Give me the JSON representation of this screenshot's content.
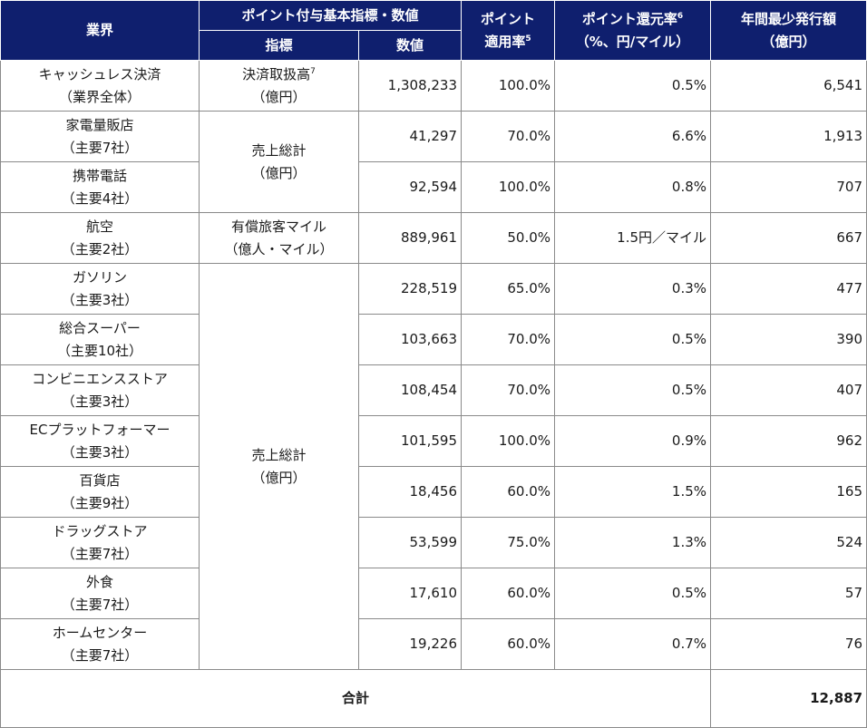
{
  "header": {
    "industry": "業界",
    "base_group": "ポイント付与基本指標・数値",
    "metric": "指標",
    "value": "数値",
    "rate_line1": "ポイント",
    "rate_line2": "適用率",
    "rate_note": "5",
    "return_line1": "ポイント還元率",
    "return_note": "6",
    "return_line2": "（%、円/マイル）",
    "issue_line1": "年間最少発行額",
    "issue_line2": "（億円）"
  },
  "metrics": {
    "settlement_line1": "決済取扱高",
    "settlement_note": "7",
    "settlement_line2": "（億円）",
    "sales1_line1": "売上総計",
    "sales1_line2": "（億円）",
    "miles_line1": "有償旅客マイル",
    "miles_line2": "（億人・マイル）",
    "sales2_line1": "売上総計",
    "sales2_line2": "（億円）"
  },
  "rows": [
    {
      "name": "キャッシュレス決済",
      "sub": "（業界全体）",
      "value": "1,308,233",
      "rate": "100.0%",
      "return": "0.5%",
      "issue": "6,541"
    },
    {
      "name": "家電量販店",
      "sub": "（主要7社）",
      "value": "41,297",
      "rate": "70.0%",
      "return": "6.6%",
      "issue": "1,913"
    },
    {
      "name": "携帯電話",
      "sub": "（主要4社）",
      "value": "92,594",
      "rate": "100.0%",
      "return": "0.8%",
      "issue": "707"
    },
    {
      "name": "航空",
      "sub": "（主要2社）",
      "value": "889,961",
      "rate": "50.0%",
      "return": "1.5円／マイル",
      "issue": "667"
    },
    {
      "name": "ガソリン",
      "sub": "（主要3社）",
      "value": "228,519",
      "rate": "65.0%",
      "return": "0.3%",
      "issue": "477"
    },
    {
      "name": "総合スーパー",
      "sub": "（主要10社）",
      "value": "103,663",
      "rate": "70.0%",
      "return": "0.5%",
      "issue": "390"
    },
    {
      "name": "コンビニエンスストア",
      "sub": "（主要3社）",
      "value": "108,454",
      "rate": "70.0%",
      "return": "0.5%",
      "issue": "407"
    },
    {
      "name": "ECプラットフォーマー",
      "sub": "（主要3社）",
      "value": "101,595",
      "rate": "100.0%",
      "return": "0.9%",
      "issue": "962"
    },
    {
      "name": "百貨店",
      "sub": "（主要9社）",
      "value": "18,456",
      "rate": "60.0%",
      "return": "1.5%",
      "issue": "165"
    },
    {
      "name": "ドラッグストア",
      "sub": "（主要7社）",
      "value": "53,599",
      "rate": "75.0%",
      "return": "1.3%",
      "issue": "524"
    },
    {
      "name": "外食",
      "sub": "（主要7社）",
      "value": "17,610",
      "rate": "60.0%",
      "return": "0.5%",
      "issue": "57"
    },
    {
      "name": "ホームセンター",
      "sub": "（主要7社）",
      "value": "19,226",
      "rate": "60.0%",
      "return": "0.7%",
      "issue": "76"
    }
  ],
  "total": {
    "label": "合計",
    "value": "12,887"
  }
}
